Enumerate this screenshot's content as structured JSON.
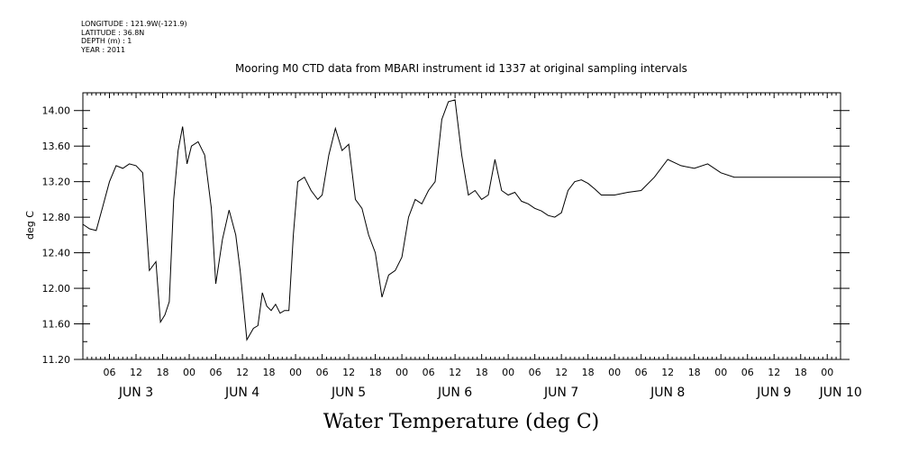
{
  "metadata": {
    "longitude": "LONGITUDE : 121.9W(-121.9)",
    "latitude": "LATITUDE : 36.8N",
    "depth": "DEPTH (m) : 1",
    "year": "YEAR : 2011"
  },
  "chart_data": {
    "type": "line",
    "title": "Mooring M0 CTD data from MBARI instrument id 1337 at original sampling intervals",
    "xlabel": "Water Temperature (deg C)",
    "ylabel": "deg C",
    "ylim": [
      11.2,
      14.2
    ],
    "yticks": [
      11.2,
      11.6,
      12.0,
      12.4,
      12.8,
      13.2,
      13.6,
      14.0
    ],
    "ytick_labels": [
      "11.20",
      "11.60",
      "12.00",
      "12.40",
      "12.80",
      "13.20",
      "13.60",
      "14.00"
    ],
    "hour_tick_labels": [
      "06",
      "12",
      "18",
      "00",
      "06",
      "12",
      "18",
      "00",
      "06",
      "12",
      "18",
      "00",
      "06",
      "12",
      "18",
      "00",
      "06",
      "12",
      "18",
      "00",
      "06",
      "12",
      "18",
      "00",
      "06",
      "12",
      "18",
      "00",
      "06",
      "12",
      "18",
      "00"
    ],
    "day_labels": [
      "JUN 3",
      "JUN 4",
      "JUN 5",
      "JUN 6",
      "JUN 7",
      "JUN 8",
      "JUN 9",
      "JUN 10"
    ],
    "grid": false,
    "series": [
      {
        "x": [
          "2011-06-03 00:00",
          "2011-06-03 01:30",
          "2011-06-03 03:00",
          "2011-06-03 04:30",
          "2011-06-03 06:00",
          "2011-06-03 07:30",
          "2011-06-03 09:00",
          "2011-06-03 10:30",
          "2011-06-03 12:00",
          "2011-06-03 13:30",
          "2011-06-03 15:00",
          "2011-06-03 16:30",
          "2011-06-03 17:30",
          "2011-06-03 18:30",
          "2011-06-03 19:30",
          "2011-06-03 20:30",
          "2011-06-03 21:30",
          "2011-06-03 22:30",
          "2011-06-03 23:30",
          "2011-06-04 00:30",
          "2011-06-04 02:00",
          "2011-06-04 03:30",
          "2011-06-04 05:00",
          "2011-06-04 06:00",
          "2011-06-04 07:30",
          "2011-06-04 09:00",
          "2011-06-04 10:30",
          "2011-06-04 11:30",
          "2011-06-04 13:00",
          "2011-06-04 14:30",
          "2011-06-04 15:30",
          "2011-06-04 16:30",
          "2011-06-04 17:30",
          "2011-06-04 18:30",
          "2011-06-04 19:30",
          "2011-06-04 20:30",
          "2011-06-04 21:30",
          "2011-06-04 22:30",
          "2011-06-04 23:30",
          "2011-06-05 00:30",
          "2011-06-05 02:00",
          "2011-06-05 03:30",
          "2011-06-05 05:00",
          "2011-06-05 06:00",
          "2011-06-05 07:30",
          "2011-06-05 09:00",
          "2011-06-05 10:30",
          "2011-06-05 12:00",
          "2011-06-05 13:30",
          "2011-06-05 15:00",
          "2011-06-05 16:30",
          "2011-06-05 18:00",
          "2011-06-05 19:30",
          "2011-06-05 21:00",
          "2011-06-05 22:30",
          "2011-06-06 00:00",
          "2011-06-06 01:30",
          "2011-06-06 03:00",
          "2011-06-06 04:30",
          "2011-06-06 06:00",
          "2011-06-06 07:30",
          "2011-06-06 09:00",
          "2011-06-06 10:30",
          "2011-06-06 12:00",
          "2011-06-06 13:30",
          "2011-06-06 15:00",
          "2011-06-06 16:30",
          "2011-06-06 18:00",
          "2011-06-06 19:30",
          "2011-06-06 21:00",
          "2011-06-06 22:30",
          "2011-06-07 00:00",
          "2011-06-07 01:30",
          "2011-06-07 03:00",
          "2011-06-07 04:30",
          "2011-06-07 06:00",
          "2011-06-07 07:30",
          "2011-06-07 09:00",
          "2011-06-07 10:30",
          "2011-06-07 12:00",
          "2011-06-07 13:30",
          "2011-06-07 15:00",
          "2011-06-07 16:30",
          "2011-06-07 18:00",
          "2011-06-07 19:30",
          "2011-06-07 21:00",
          "2011-06-07 22:30",
          "2011-06-08 00:00",
          "2011-06-08 03:00",
          "2011-06-08 06:00",
          "2011-06-08 09:00",
          "2011-06-08 12:00",
          "2011-06-08 15:00",
          "2011-06-08 18:00",
          "2011-06-08 21:00",
          "2011-06-09 00:00",
          "2011-06-09 03:00",
          "2011-06-09 06:00",
          "2011-06-09 09:00",
          "2011-06-09 12:00",
          "2011-06-09 15:00",
          "2011-06-09 18:00",
          "2011-06-09 21:00",
          "2011-06-10 00:00",
          "2011-06-10 01:30",
          "2011-06-10 03:00"
        ],
        "y": [
          12.72,
          12.67,
          12.65,
          12.92,
          13.2,
          13.38,
          13.35,
          13.4,
          13.38,
          13.3,
          12.2,
          12.3,
          11.62,
          11.7,
          11.85,
          13.0,
          13.55,
          13.82,
          13.4,
          13.6,
          13.65,
          13.5,
          12.9,
          12.05,
          12.55,
          12.88,
          12.6,
          12.2,
          11.42,
          11.55,
          11.58,
          11.95,
          11.8,
          11.75,
          11.82,
          11.72,
          11.75,
          11.75,
          12.6,
          13.2,
          13.25,
          13.1,
          13.0,
          13.05,
          13.5,
          13.8,
          13.55,
          13.62,
          13.0,
          12.9,
          12.6,
          12.4,
          11.9,
          12.15,
          12.2,
          12.35,
          12.8,
          13.0,
          12.95,
          13.1,
          13.2,
          13.9,
          14.1,
          14.12,
          13.5,
          13.05,
          13.1,
          13.0,
          13.05,
          13.45,
          13.1,
          13.05,
          13.08,
          12.98,
          12.95,
          12.9,
          12.87,
          12.82,
          12.8,
          12.85,
          13.1,
          13.2,
          13.22,
          13.18,
          13.12,
          13.05,
          13.05,
          13.05,
          13.08,
          13.1,
          13.25,
          13.45,
          13.38,
          13.35,
          13.4,
          13.3,
          13.25,
          13.25,
          13.25,
          13.25,
          13.25,
          13.25,
          13.25,
          13.25,
          13.25,
          13.25
        ]
      }
    ]
  }
}
